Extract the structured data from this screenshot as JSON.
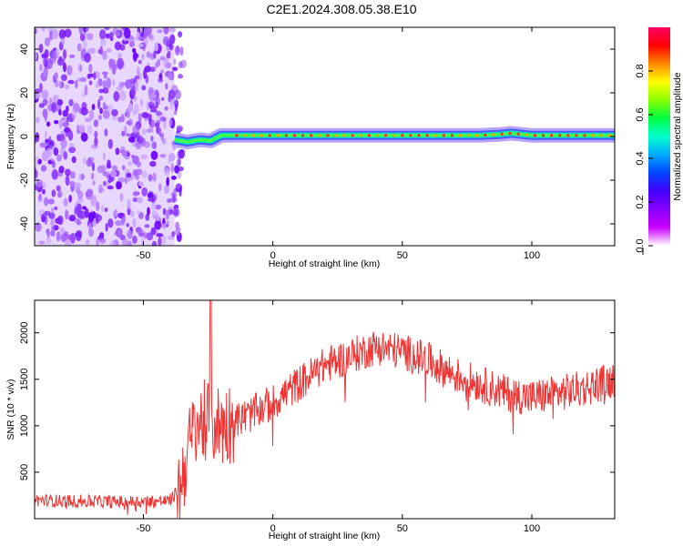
{
  "title": "C2E1.2024.308.05.38.E10",
  "colors": {
    "snr_line": "#ee3333",
    "frame": "#000000",
    "colorbar_stops": [
      "#ff0066",
      "#ff0000",
      "#ff8800",
      "#ffff00",
      "#88ff00",
      "#00ff44",
      "#00ffcc",
      "#00aaff",
      "#0044ff",
      "#4400ff",
      "#8800ff",
      "#cc00ff",
      "#ffffff"
    ]
  },
  "chart_data": [
    {
      "type": "heatmap",
      "title": "C2E1.2024.308.05.38.E10",
      "xlabel": "Height of straight line (km)",
      "ylabel": "Frequency (Hz)",
      "xlim": [
        -92,
        132
      ],
      "ylim": [
        -50,
        50
      ],
      "x_ticks": [
        -50,
        0,
        50,
        100
      ],
      "x_tick_labels": [
        "-50",
        "0",
        "50",
        "100"
      ],
      "y_ticks": [
        -40,
        -20,
        0,
        20,
        40
      ],
      "y_tick_labels": [
        "-40",
        "-20",
        "0",
        "20",
        "40"
      ],
      "grid": false,
      "colorbar": {
        "label": "Normalized spectral amplitude",
        "range": [
          0,
          1
        ],
        "ticks": [
          0.0,
          0.2,
          0.4,
          0.6,
          0.8
        ],
        "tick_labels": [
          "0.0",
          "0.2",
          "0.4",
          "0.6",
          "0.8"
        ]
      },
      "noise_region_x": [
        -92,
        -38
      ],
      "signal_track": {
        "x": [
          -38,
          -33,
          -28,
          -24,
          -20,
          -15,
          0,
          20,
          40,
          60,
          80,
          88,
          92,
          100,
          120,
          132
        ],
        "frequency": [
          -1.5,
          -2.5,
          -1.5,
          -2.0,
          0.5,
          0.5,
          0.5,
          0.5,
          0.5,
          0.5,
          0.5,
          1.0,
          1.5,
          0.5,
          0.5,
          0.5
        ]
      }
    },
    {
      "type": "line",
      "xlabel": "Height of straight line (km)",
      "ylabel": "SNR (10 * v/v)",
      "xlim": [
        -92,
        132
      ],
      "ylim": [
        0,
        2350
      ],
      "x_ticks": [
        -50,
        0,
        50,
        100
      ],
      "x_tick_labels": [
        "-50",
        "0",
        "50",
        "100"
      ],
      "y_ticks": [
        500,
        1000,
        1500,
        2000
      ],
      "y_tick_labels": [
        "500",
        "1000",
        "1500",
        "2000"
      ],
      "grid": false,
      "series": [
        {
          "x": [
            -92,
            -80,
            -60,
            -40,
            -36,
            -33,
            -30,
            -27,
            -24,
            -20,
            -15,
            -10,
            0,
            10,
            20,
            30,
            40,
            50,
            60,
            70,
            80,
            90,
            100,
            110,
            120,
            132
          ],
          "values": [
            200,
            190,
            180,
            190,
            320,
            700,
            1000,
            1050,
            1050,
            1000,
            1050,
            1100,
            1250,
            1450,
            1650,
            1750,
            1850,
            1800,
            1700,
            1550,
            1450,
            1350,
            1300,
            1350,
            1400,
            1500
          ]
        }
      ]
    }
  ]
}
